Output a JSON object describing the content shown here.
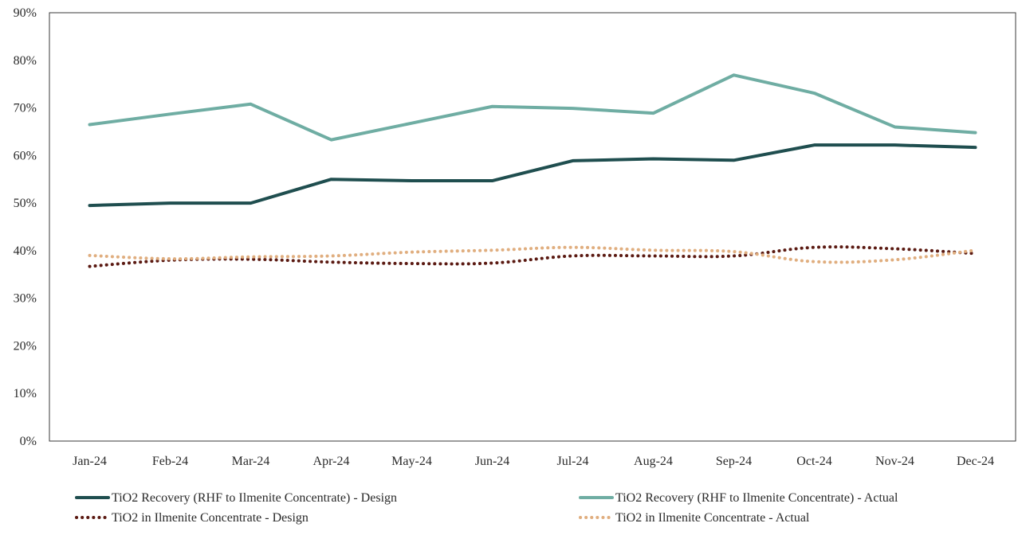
{
  "chart_data": {
    "type": "line",
    "title": "",
    "xlabel": "",
    "ylabel": "",
    "categories": [
      "Jan-24",
      "Feb-24",
      "Mar-24",
      "Apr-24",
      "May-24",
      "Jun-24",
      "Jul-24",
      "Aug-24",
      "Sep-24",
      "Oct-24",
      "Nov-24",
      "Dec-24"
    ],
    "ylim": [
      0,
      90
    ],
    "yticks": [
      0,
      10,
      20,
      30,
      40,
      50,
      60,
      70,
      80,
      90
    ],
    "ytick_labels": [
      "0%",
      "10%",
      "20%",
      "30%",
      "40%",
      "50%",
      "60%",
      "70%",
      "80%",
      "90%"
    ],
    "grid": false,
    "legend_position": "bottom",
    "series": [
      {
        "name": "TiO2 Recovery (RHF to Ilmenite Concentrate) - Design",
        "color": "#1f4e4f",
        "style": "solid",
        "values": [
          49.5,
          50.0,
          50.0,
          55.0,
          54.7,
          54.7,
          58.9,
          59.3,
          59.0,
          62.2,
          62.2,
          61.7
        ]
      },
      {
        "name": "TiO2 Recovery (RHF to Ilmenite Concentrate) - Actual",
        "color": "#6fada3",
        "style": "solid",
        "values": [
          66.5,
          68.7,
          70.8,
          63.3,
          66.8,
          70.3,
          69.9,
          68.9,
          76.9,
          73.1,
          66.0,
          64.8
        ]
      },
      {
        "name": "TiO2 in Ilmenite Concentrate - Design",
        "color": "#5b1a12",
        "style": "dotted",
        "values": [
          36.7,
          38.0,
          38.2,
          37.6,
          37.3,
          37.4,
          38.9,
          38.9,
          38.9,
          40.7,
          40.4,
          39.4
        ]
      },
      {
        "name": "TiO2 in Ilmenite Concentrate - Actual",
        "color": "#e0ae7f",
        "style": "dotted",
        "values": [
          39.0,
          38.3,
          38.7,
          38.9,
          39.7,
          40.1,
          40.7,
          40.1,
          39.8,
          37.7,
          38.1,
          40.1
        ]
      }
    ]
  }
}
